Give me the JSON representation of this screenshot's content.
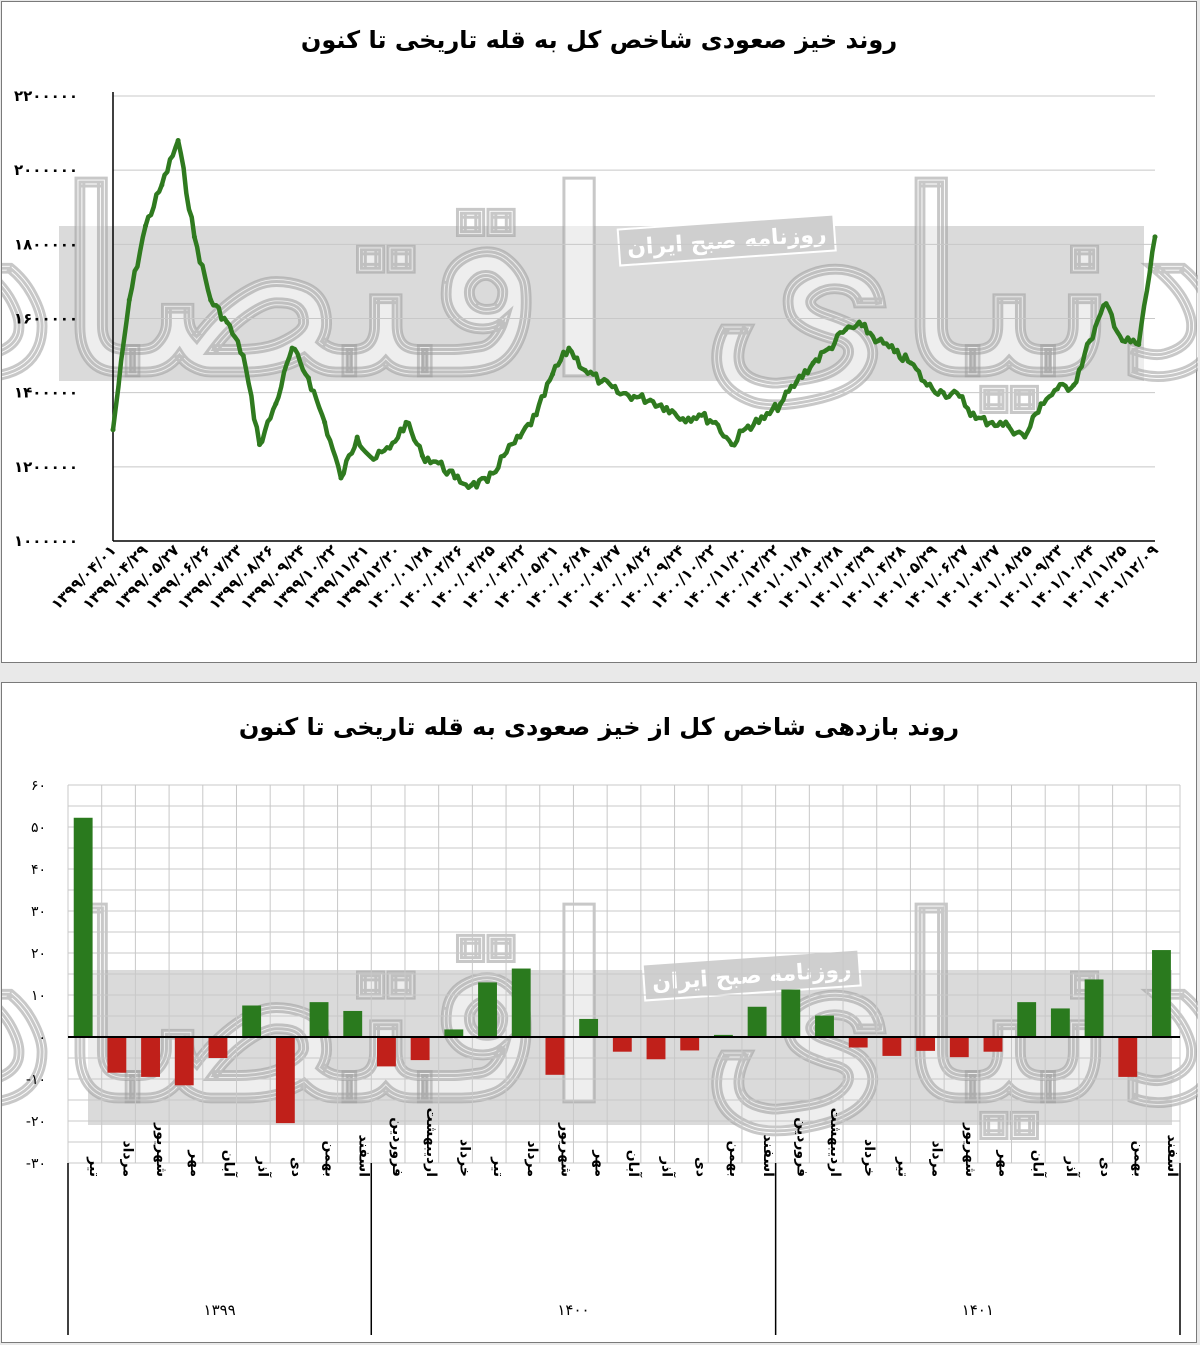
{
  "colors": {
    "line": "#2f7a1f",
    "positive": "#2a7a1e",
    "negative": "#c0201a",
    "band": "#d3d3d3",
    "grid": "#c8c8c8"
  },
  "watermark": {
    "main": "دنیای اقتصاد",
    "sub": "روزنامه صبح ایران"
  },
  "chart_data": [
    {
      "type": "line",
      "title": "روند خیز صعودی شاخص کل به قله تاریخی تا کنون",
      "ylim": [
        1000000,
        2200000
      ],
      "yticks": [
        1000000,
        1200000,
        1400000,
        1600000,
        1800000,
        2000000,
        2200000
      ],
      "ytick_labels": [
        "۱۰۰۰۰۰۰",
        "۱۲۰۰۰۰۰",
        "۱۴۰۰۰۰۰",
        "۱۶۰۰۰۰۰",
        "۱۸۰۰۰۰۰",
        "۲۰۰۰۰۰۰",
        "۲۲۰۰۰۰۰"
      ],
      "grid": "horizontal",
      "x": [
        "1399/04/01",
        "1399/04/20",
        "1399/05/10",
        "1399/05/27",
        "1399/06/15",
        "1399/06/26",
        "1399/07/15",
        "1399/07/23",
        "1399/08/10",
        "1399/08/26",
        "1399/09/10",
        "1399/09/24",
        "1399/10/08",
        "1399/10/22",
        "1399/11/05",
        "1399/11/21",
        "1399/12/05",
        "1399/12/20",
        "1400/01/10",
        "1400/01/28",
        "1400/02/10",
        "1400/02/26",
        "1400/03/10",
        "1400/03/25",
        "1400/04/10",
        "1400/04/22",
        "1400/05/10",
        "1400/05/31",
        "1400/06/15",
        "1400/06/28",
        "1400/07/15",
        "1400/07/27",
        "1400/08/10",
        "1400/08/26",
        "1400/09/10",
        "1400/09/24",
        "1400/10/08",
        "1400/10/22",
        "1400/11/05",
        "1400/11/20",
        "1400/12/05",
        "1400/12/22",
        "1401/01/10",
        "1401/01/28",
        "1401/02/10",
        "1401/02/28",
        "1401/03/10",
        "1401/03/29",
        "1401/04/10",
        "1401/04/28",
        "1401/05/10",
        "1401/05/29",
        "1401/06/10",
        "1401/06/27",
        "1401/07/10",
        "1401/07/27",
        "1401/08/10",
        "1401/08/25",
        "1401/09/10",
        "1401/09/23",
        "1401/10/10",
        "1401/10/24",
        "1401/11/10",
        "1401/11/25",
        "1401/12/09"
      ],
      "values": [
        1300000,
        1650000,
        1850000,
        1960000,
        2080000,
        1820000,
        1650000,
        1590000,
        1500000,
        1260000,
        1370000,
        1520000,
        1440000,
        1320000,
        1170000,
        1280000,
        1220000,
        1250000,
        1320000,
        1230000,
        1210000,
        1170000,
        1150000,
        1160000,
        1230000,
        1280000,
        1340000,
        1450000,
        1520000,
        1460000,
        1430000,
        1400000,
        1390000,
        1380000,
        1360000,
        1330000,
        1340000,
        1320000,
        1260000,
        1310000,
        1330000,
        1370000,
        1430000,
        1480000,
        1520000,
        1570000,
        1580000,
        1540000,
        1510000,
        1480000,
        1420000,
        1400000,
        1390000,
        1330000,
        1320000,
        1310000,
        1280000,
        1370000,
        1410000,
        1420000,
        1540000,
        1640000,
        1540000,
        1530000,
        1820000
      ],
      "x_tick_labels": [
        "۱۳۹۹/۰۴/۰۱",
        "۱۳۹۹/۰۴/۲۹",
        "۱۳۹۹/۰۵/۲۷",
        "۱۳۹۹/۰۶/۲۶",
        "۱۳۹۹/۰۷/۲۳",
        "۱۳۹۹/۰۸/۲۶",
        "۱۳۹۹/۰۹/۲۴",
        "۱۳۹۹/۱۰/۲۲",
        "۱۳۹۹/۱۱/۲۱",
        "۱۳۹۹/۱۲/۲۰",
        "۱۴۰۰/۰۱/۲۸",
        "۱۴۰۰/۰۲/۲۶",
        "۱۴۰۰/۰۳/۲۵",
        "۱۴۰۰/۰۴/۲۲",
        "۱۴۰۰/۰۵/۳۱",
        "۱۴۰۰/۰۶/۲۸",
        "۱۴۰۰/۰۷/۲۷",
        "۱۴۰۰/۰۸/۲۶",
        "۱۴۰۰/۰۹/۲۴",
        "۱۴۰۰/۱۰/۲۲",
        "۱۴۰۰/۱۱/۲۰",
        "۱۴۰۰/۱۲/۲۲",
        "۱۴۰۱/۰۱/۲۸",
        "۱۴۰۱/۰۲/۲۸",
        "۱۴۰۱/۰۳/۲۹",
        "۱۴۰۱/۰۴/۲۸",
        "۱۴۰۱/۰۵/۲۹",
        "۱۴۰۱/۰۶/۲۷",
        "۱۴۰۱/۰۷/۲۷",
        "۱۴۰۱/۰۸/۲۵",
        "۱۴۰۱/۰۹/۲۳",
        "۱۴۰۱/۱۰/۲۴",
        "۱۴۰۱/۱۱/۲۵",
        "۱۴۰۱/۱۲/۰۹"
      ]
    },
    {
      "type": "bar",
      "title": "روند بازدهی شاخص کل از خیز صعودی به قله تاریخی تا کنون",
      "ylim": [
        -30,
        60
      ],
      "yticks": [
        -30,
        -20,
        -10,
        0,
        10,
        20,
        30,
        40,
        50,
        60
      ],
      "ytick_labels": [
        "-۳۰",
        "-۲۰",
        "-۱۰",
        "۰",
        "۱۰",
        "۲۰",
        "۳۰",
        "۴۰",
        "۵۰",
        "۶۰"
      ],
      "grid": "both",
      "categories": [
        "تیر",
        "مرداد",
        "شهریور",
        "مهر",
        "آبان",
        "آذر",
        "دی",
        "بهمن",
        "اسفند",
        "فروردین",
        "اردیبهشت",
        "خرداد",
        "تیر",
        "مرداد",
        "شهریور",
        "مهر",
        "آبان",
        "آذر",
        "دی",
        "بهمن",
        "اسفند",
        "فروردین",
        "اردیبهشت",
        "خرداد",
        "تیر",
        "مرداد",
        "شهریور",
        "مهر",
        "آبان",
        "آذر",
        "دی",
        "بهمن",
        "اسفند"
      ],
      "values": [
        52.2,
        -8.5,
        -9.5,
        -11.5,
        -5,
        7.5,
        -20.5,
        8.3,
        6.2,
        -7,
        -5.5,
        1.8,
        13,
        16.3,
        -9,
        4.3,
        -3.5,
        -5.3,
        -3.2,
        0.5,
        7.2,
        11.3,
        5.1,
        -2.5,
        -4.5,
        -3.3,
        -4.8,
        -3.5,
        8.3,
        6.8,
        13.7,
        -9.5,
        20.7
      ],
      "groups": [
        {
          "label": "۱۳۹۹",
          "start": 0,
          "end": 8
        },
        {
          "label": "۱۴۰۰",
          "start": 9,
          "end": 20
        },
        {
          "label": "۱۴۰۱",
          "start": 21,
          "end": 32
        }
      ]
    }
  ]
}
